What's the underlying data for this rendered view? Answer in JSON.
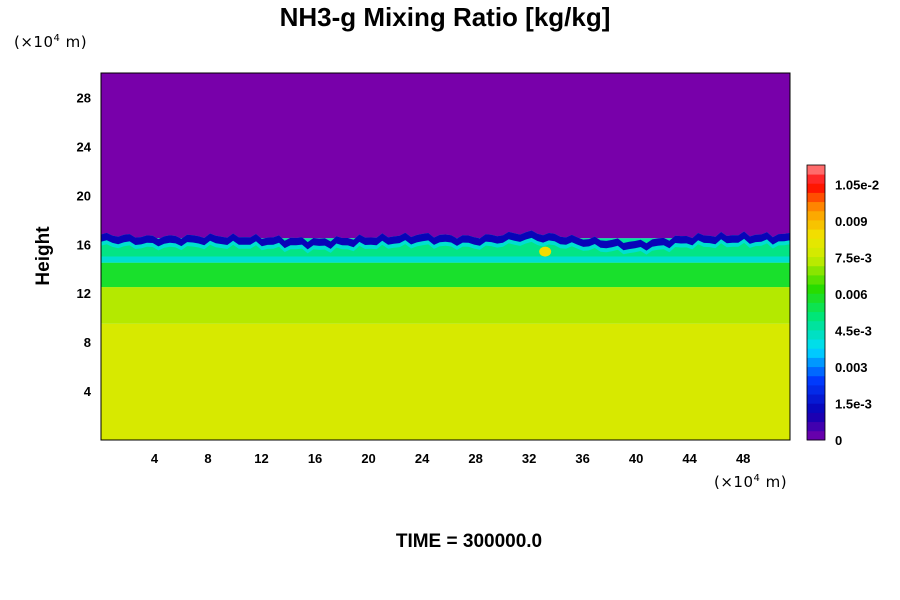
{
  "chart_data": {
    "type": "heatmap",
    "title": "NH3-g Mixing Ratio [kg/kg]",
    "ylabel": "Height",
    "xlabel": "",
    "y_unit_prefix": "(×10",
    "y_unit_exp": "4",
    "y_unit_suffix": " m)",
    "x_unit_prefix": "(×10",
    "x_unit_exp": "4",
    "x_unit_suffix": " m)",
    "xlim": [
      0,
      51.5
    ],
    "ylim": [
      0,
      30
    ],
    "x_ticks": [
      4,
      8,
      12,
      16,
      20,
      24,
      28,
      32,
      36,
      40,
      44,
      48
    ],
    "x_tick_labels": [
      "4",
      "8",
      "12",
      "16",
      "20",
      "24",
      "28",
      "32",
      "36",
      "40",
      "44",
      "48"
    ],
    "y_ticks": [
      4,
      8,
      12,
      16,
      20,
      24,
      28
    ],
    "y_tick_labels": [
      "4",
      "8",
      "12",
      "16",
      "20",
      "24",
      "28"
    ],
    "colorbar": {
      "min": 0,
      "max": 0.0113,
      "levels": 30,
      "tick_values": [
        0,
        0.0015,
        0.003,
        0.0045,
        0.006,
        0.0075,
        0.009,
        0.0105
      ],
      "tick_labels": [
        "0",
        "1.5e-3",
        "0.003",
        "4.5e-3",
        "0.006",
        "7.5e-3",
        "0.009",
        "1.05e-2"
      ]
    },
    "layers": [
      {
        "height_from": 0,
        "height_to": 9.5,
        "value": 0.0078
      },
      {
        "height_from": 9.5,
        "height_to": 12.5,
        "value": 0.0073
      },
      {
        "height_from": 12.5,
        "height_to": 14.5,
        "value": 0.0058
      },
      {
        "height_from": 14.5,
        "height_to": 16.5,
        "value": 0.0047
      },
      {
        "height_from": 16.5,
        "height_to": 30,
        "value": 0.0
      }
    ],
    "cloud_top_profile": {
      "x": [
        0,
        4,
        8,
        12,
        16,
        20,
        24,
        28,
        32,
        36,
        40,
        44,
        48,
        51.5
      ],
      "height": [
        16.8,
        16.6,
        16.7,
        16.6,
        16.4,
        16.6,
        16.8,
        16.6,
        17.0,
        16.5,
        16.2,
        16.7,
        16.8,
        16.8
      ]
    },
    "annotation_text": "TIME = 300000.0"
  }
}
